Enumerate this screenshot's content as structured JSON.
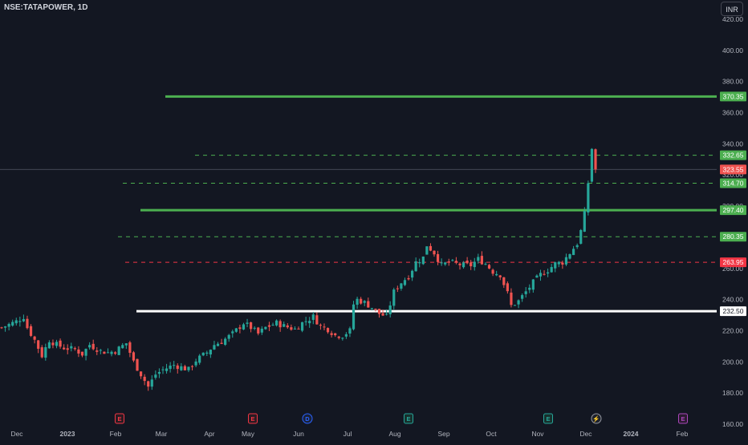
{
  "header": {
    "symbol": "NSE:TATAPOWER, 1D",
    "currency": "INR"
  },
  "colors": {
    "background": "#131722",
    "up": "#26a69a",
    "down": "#ef5350",
    "support_green": "#4caf50",
    "dashed_green": "#4caf50",
    "dashed_red": "#f23645",
    "white_level": "#ffffff",
    "axis_text": "#b2b5be"
  },
  "chart_data": {
    "type": "candlestick",
    "y_ticks": [
      "160.00",
      "180.00",
      "200.00",
      "220.00",
      "240.00",
      "260.00",
      "280.00",
      "300.00",
      "320.00",
      "340.00",
      "360.00",
      "380.00",
      "400.00",
      "420.00"
    ],
    "x_labels": [
      "Dec",
      "2023",
      "Feb",
      "Mar",
      "Apr",
      "May",
      "Jun",
      "Jul",
      "Aug",
      "Sep",
      "Oct",
      "Nov",
      "Dec",
      "2024",
      "Feb"
    ],
    "ylim": [
      160,
      420
    ],
    "levels": [
      {
        "value": 370.35,
        "label": "370.35",
        "style": "solid",
        "color": "green"
      },
      {
        "value": 332.65,
        "label": "332.65",
        "style": "dashed",
        "color": "green"
      },
      {
        "value": 314.7,
        "label": "314.70",
        "style": "dashed",
        "color": "green"
      },
      {
        "value": 297.4,
        "label": "297.40",
        "style": "solid",
        "color": "green"
      },
      {
        "value": 280.35,
        "label": "280.35",
        "style": "dashed",
        "color": "green"
      },
      {
        "value": 263.95,
        "label": "263.95",
        "style": "dashed",
        "color": "red"
      },
      {
        "value": 232.5,
        "label": "232.50",
        "style": "solid",
        "color": "white"
      }
    ],
    "last_price": {
      "value": 323.55,
      "label": "323.55"
    },
    "events": [
      {
        "x_label": "Feb",
        "type": "earnings",
        "symbol": "E"
      },
      {
        "x_label": "May",
        "type": "earnings",
        "symbol": "E"
      },
      {
        "x_label": "Jun",
        "type": "dividend",
        "symbol": "D"
      },
      {
        "x_label": "Aug",
        "type": "earnings",
        "symbol": "E"
      },
      {
        "x_label": "Nov",
        "type": "earnings",
        "symbol": "E"
      },
      {
        "x_label": "Dec",
        "type": "split",
        "symbol": "⚡"
      },
      {
        "x_label": "Feb",
        "type": "earnings",
        "symbol": "E"
      }
    ],
    "price_path": [
      [
        0,
        222
      ],
      [
        4,
        226
      ],
      [
        6,
        229
      ],
      [
        7,
        222
      ],
      [
        9,
        214
      ],
      [
        11,
        204
      ],
      [
        13,
        214
      ],
      [
        15,
        211
      ],
      [
        17,
        209
      ],
      [
        20,
        208
      ],
      [
        22,
        205
      ],
      [
        24,
        211
      ],
      [
        27,
        207
      ],
      [
        29,
        206
      ],
      [
        31,
        207
      ],
      [
        34,
        212
      ],
      [
        36,
        200
      ],
      [
        38,
        192
      ],
      [
        40,
        184
      ],
      [
        42,
        192
      ],
      [
        44,
        195
      ],
      [
        47,
        198
      ],
      [
        51,
        195
      ],
      [
        53,
        201
      ],
      [
        56,
        206
      ],
      [
        58,
        211
      ],
      [
        60,
        213
      ],
      [
        63,
        218
      ],
      [
        66,
        225
      ],
      [
        68,
        222
      ],
      [
        70,
        218
      ],
      [
        72,
        222
      ],
      [
        75,
        225
      ],
      [
        77,
        223
      ],
      [
        80,
        221
      ],
      [
        82,
        225
      ],
      [
        85,
        229
      ],
      [
        87,
        223
      ],
      [
        89,
        221
      ],
      [
        91,
        217
      ],
      [
        93,
        217
      ],
      [
        95,
        220
      ],
      [
        96,
        237
      ],
      [
        97,
        240
      ],
      [
        99,
        238
      ],
      [
        101,
        235
      ],
      [
        103,
        231
      ],
      [
        105,
        229
      ],
      [
        107,
        245
      ],
      [
        109,
        251
      ],
      [
        111,
        255
      ],
      [
        113,
        264
      ],
      [
        115,
        267
      ],
      [
        116,
        275
      ],
      [
        118,
        270
      ],
      [
        120,
        262
      ],
      [
        122,
        264
      ],
      [
        124,
        263
      ],
      [
        126,
        262
      ],
      [
        128,
        262
      ],
      [
        130,
        266
      ],
      [
        132,
        263
      ],
      [
        134,
        258
      ],
      [
        136,
        256
      ],
      [
        138,
        244
      ],
      [
        139,
        236
      ],
      [
        141,
        239
      ],
      [
        143,
        245
      ],
      [
        145,
        251
      ],
      [
        147,
        256
      ],
      [
        149,
        259
      ],
      [
        151,
        263
      ],
      [
        153,
        264
      ],
      [
        155,
        270
      ],
      [
        157,
        276
      ],
      [
        158,
        284
      ],
      [
        159,
        295
      ],
      [
        160,
        315
      ],
      [
        161,
        337
      ],
      [
        162,
        324
      ]
    ]
  }
}
